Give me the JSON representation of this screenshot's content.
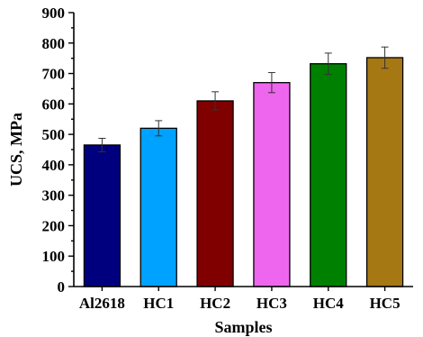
{
  "chart_data": {
    "type": "bar",
    "title": "",
    "xlabel": "Samples",
    "ylabel": "UCS, MPa",
    "ylim": [
      0,
      900
    ],
    "yticks": [
      0,
      100,
      200,
      300,
      400,
      500,
      600,
      700,
      800,
      900
    ],
    "grid": false,
    "categories": [
      "Al2618",
      "HC1",
      "HC2",
      "HC3",
      "HC4",
      "HC5"
    ],
    "values": [
      465,
      520,
      610,
      670,
      732,
      752
    ],
    "errors": [
      22,
      25,
      30,
      33,
      35,
      35
    ],
    "colors": [
      "#00007f",
      "#00a2ff",
      "#800000",
      "#ee66ee",
      "#008000",
      "#a67814"
    ]
  }
}
